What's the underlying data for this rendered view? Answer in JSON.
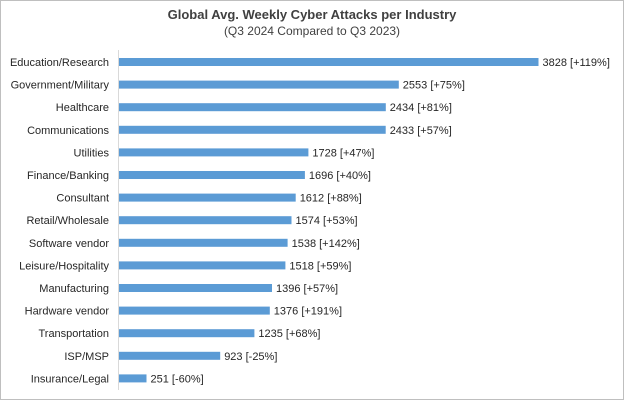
{
  "chart_data": {
    "type": "bar",
    "orientation": "horizontal",
    "title": "Global Avg. Weekly Cyber Attacks per Industry",
    "subtitle": "(Q3 2024 Compared to Q3 2023)",
    "xlabel": "",
    "ylabel": "",
    "xlim": [
      0,
      4000
    ],
    "grid": false,
    "legend": "none",
    "bar_color": "#5b9bd5",
    "categories": [
      "Education/Research",
      "Government/Military",
      "Healthcare",
      "Communications",
      "Utilities",
      "Finance/Banking",
      "Consultant",
      "Retail/Wholesale",
      "Software vendor",
      "Leisure/Hospitality",
      "Manufacturing",
      "Hardware vendor",
      "Transportation",
      "ISP/MSP",
      "Insurance/Legal"
    ],
    "values": [
      3828,
      2553,
      2434,
      2433,
      1728,
      1696,
      1612,
      1574,
      1538,
      1518,
      1396,
      1376,
      1235,
      923,
      251
    ],
    "data_labels": [
      "3828 [+119%]",
      "2553 [+75%]",
      "2434 [+81%]",
      "2433 [+57%]",
      "1728 [+47%]",
      "1696 [+40%]",
      "1612 [+88%]",
      "1574 [+53%]",
      "1538 [+142%]",
      "1518 [+59%]",
      "1396 [+57%]",
      "1376 [+191%]",
      "1235 [+68%]",
      "923 [-25%]",
      "251 [-60%]"
    ]
  }
}
